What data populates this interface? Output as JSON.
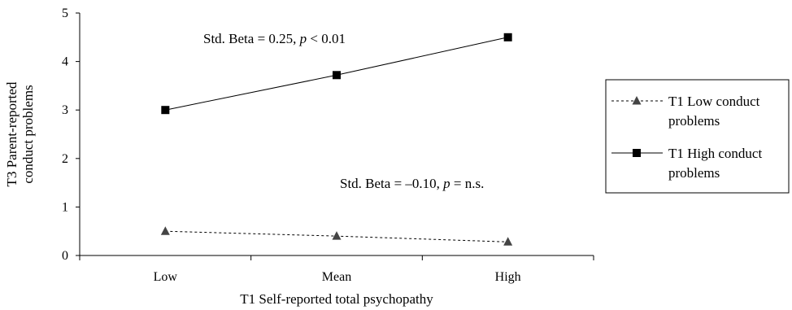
{
  "chart_data": {
    "type": "line",
    "categories": [
      "Low",
      "Mean",
      "High"
    ],
    "series": [
      {
        "name": "T1 Low conduct problems",
        "values": [
          0.5,
          0.4,
          0.28
        ],
        "marker": "triangle",
        "line_style": "dashed"
      },
      {
        "name": "T1 High conduct problems",
        "values": [
          3.0,
          3.72,
          4.5
        ],
        "marker": "square",
        "line_style": "solid"
      }
    ],
    "xlabel": "T1 Self-reported total psychopathy",
    "ylabel": [
      "T3 Parent-reported",
      "conduct problems"
    ],
    "ylim": [
      0,
      5
    ],
    "yticks": [
      0,
      1,
      2,
      3,
      4,
      5
    ],
    "grid": false,
    "legend": {
      "placement": "right",
      "items": [
        {
          "lines": [
            "T1 Low conduct",
            "problems"
          ]
        },
        {
          "lines": [
            "T1 High conduct",
            "problems"
          ]
        }
      ]
    },
    "annotations": [
      {
        "prefix": "Std. Beta = 0.25, ",
        "p": "p",
        "suffix": " < 0.01",
        "series": 1
      },
      {
        "prefix": "Std. Beta = –0.10, ",
        "p": "p",
        "suffix": " = n.s.",
        "series": 0
      }
    ]
  }
}
